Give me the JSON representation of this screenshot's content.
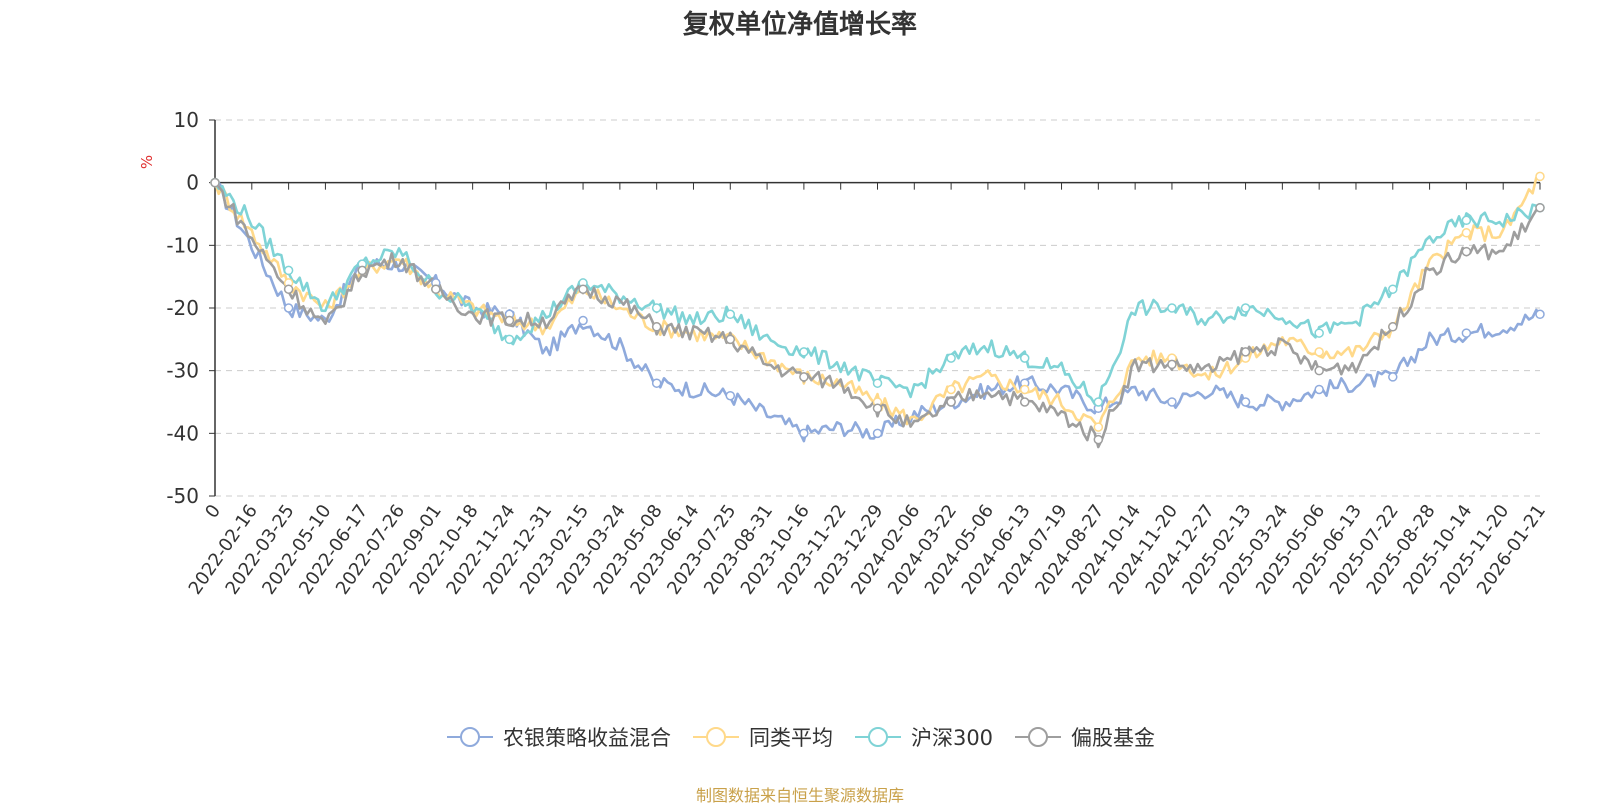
{
  "chart_data": {
    "type": "line",
    "title": "复权单位净值增长率",
    "ylabel": "%",
    "ylim": [
      -50,
      10
    ],
    "yticks": [
      10,
      0,
      -10,
      -20,
      -30,
      -40,
      -50
    ],
    "x_categories": [
      "0",
      "2022-02-16",
      "2022-03-25",
      "2022-05-10",
      "2022-06-17",
      "2022-07-26",
      "2022-09-01",
      "2022-10-18",
      "2022-11-24",
      "2022-12-31",
      "2023-02-15",
      "2023-03-24",
      "2023-05-08",
      "2023-06-14",
      "2023-07-25",
      "2023-08-31",
      "2023-10-16",
      "2023-11-22",
      "2023-12-29",
      "2024-02-06",
      "2024-03-22",
      "2024-05-06",
      "2024-06-13",
      "2024-07-19",
      "2024-08-27",
      "2024-10-14",
      "2024-11-20",
      "2024-12-27",
      "2025-02-13",
      "2025-03-24",
      "2025-05-06",
      "2025-06-13",
      "2025-07-22",
      "2025-08-28",
      "2025-10-14",
      "2025-11-20",
      "2026-01-21"
    ],
    "grid": true,
    "legend_position": "bottom",
    "series": [
      {
        "name": "农银策略收益混合",
        "color": "#8faadc",
        "values": [
          0,
          -10,
          -20,
          -22,
          -13,
          -13,
          -16,
          -20,
          -21,
          -27,
          -22,
          -26,
          -32,
          -33,
          -34,
          -37,
          -40,
          -39,
          -40,
          -37,
          -35,
          -33,
          -32,
          -33,
          -36,
          -33,
          -35,
          -33,
          -35,
          -35,
          -33,
          -32,
          -31,
          -25,
          -24,
          -23,
          -21
        ]
      },
      {
        "name": "同类平均",
        "color": "#ffd98a",
        "values": [
          0,
          -8,
          -16,
          -20,
          -14,
          -12,
          -17,
          -20,
          -22,
          -23,
          -17,
          -20,
          -23,
          -24,
          -25,
          -28,
          -31,
          -32,
          -35,
          -38,
          -33,
          -31,
          -33,
          -35,
          -39,
          -28,
          -28,
          -31,
          -28,
          -25,
          -27,
          -27,
          -23,
          -13,
          -8,
          -8,
          1
        ]
      },
      {
        "name": "沪深300",
        "color": "#7fd3d6",
        "values": [
          0,
          -6,
          -14,
          -20,
          -13,
          -11,
          -17,
          -20,
          -25,
          -21,
          -16,
          -18,
          -20,
          -22,
          -21,
          -25,
          -27,
          -29,
          -32,
          -33,
          -28,
          -26,
          -28,
          -30,
          -35,
          -20,
          -20,
          -22,
          -20,
          -21,
          -24,
          -22,
          -17,
          -9,
          -6,
          -6,
          -4
        ]
      },
      {
        "name": "偏股基金",
        "color": "#9e9e9e",
        "values": [
          0,
          -9,
          -17,
          -23,
          -14,
          -12,
          -17,
          -21,
          -22,
          -22,
          -17,
          -19,
          -23,
          -24,
          -25,
          -29,
          -31,
          -32,
          -36,
          -39,
          -35,
          -33,
          -35,
          -37,
          -41,
          -29,
          -29,
          -30,
          -27,
          -26,
          -30,
          -29,
          -23,
          -14,
          -11,
          -11,
          -4
        ]
      }
    ]
  },
  "source_text": "制图数据来自恒生聚源数据库"
}
